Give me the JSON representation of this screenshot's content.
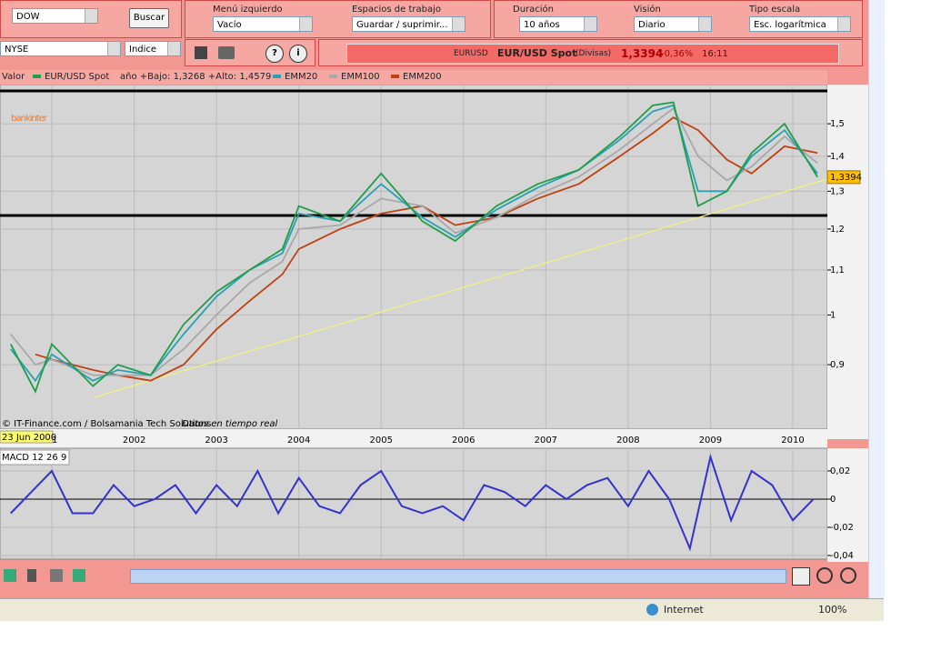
{
  "toolbar": {
    "search_value": "DOW",
    "search_button": "Buscar",
    "left_menu": {
      "label": "Menú izquierdo",
      "value": "Vacío"
    },
    "workspaces": {
      "label": "Espacios de trabajo",
      "value": "Guardar / suprimir..."
    },
    "duration": {
      "label": "Duración",
      "value": "10 años"
    },
    "view": {
      "label": "Visión",
      "value": "Diario"
    },
    "scale": {
      "label": "Tipo escala",
      "value": "Esc. logarítmica"
    },
    "market": "NYSE",
    "instrument_type": "Indice"
  },
  "ticker": {
    "symbol": "EURUSD",
    "name": "EUR/USD Spot",
    "market": "(Divisas)",
    "price": "1,3394",
    "change": "-0,36%",
    "time": "16:11"
  },
  "legend": {
    "value_label": "Valor",
    "range_text": "año +Bajo: 1,3268 +Alto: 1,4579"
  },
  "chart_data": [
    {
      "type": "line",
      "logo": "bankinter",
      "credit": "© IT-Finance.com / Bolsamania Tech Solutions",
      "credit_note": "Datos en tiempo real",
      "start_date": "23 Jun 2000",
      "log_scale": true,
      "grid": true,
      "x": [
        2000.5,
        2000.8,
        2001.0,
        2001.5,
        2001.8,
        2002.2,
        2002.6,
        2003.0,
        2003.4,
        2003.8,
        2004.0,
        2004.5,
        2005.0,
        2005.5,
        2005.9,
        2006.4,
        2006.9,
        2007.4,
        2007.9,
        2008.3,
        2008.55,
        2008.85,
        2009.2,
        2009.5,
        2009.9,
        2010.3
      ],
      "series": [
        {
          "name": "EMM200",
          "color": "#c0400f",
          "values": [
            null,
            0.92,
            0.91,
            0.89,
            0.88,
            0.87,
            0.9,
            0.97,
            1.03,
            1.09,
            1.15,
            1.2,
            1.24,
            1.26,
            1.21,
            1.23,
            1.28,
            1.32,
            1.4,
            1.47,
            1.52,
            1.48,
            1.39,
            1.35,
            1.43,
            1.41
          ]
        },
        {
          "name": "EMM100",
          "color": "#a8a8a8",
          "values": [
            0.96,
            0.9,
            0.91,
            0.88,
            0.88,
            0.88,
            0.93,
            1.0,
            1.07,
            1.12,
            1.2,
            1.21,
            1.28,
            1.26,
            1.19,
            1.23,
            1.29,
            1.34,
            1.42,
            1.5,
            1.55,
            1.4,
            1.33,
            1.37,
            1.46,
            1.38
          ]
        },
        {
          "name": "EMM20",
          "color": "#2aa0b4",
          "values": [
            0.93,
            0.87,
            0.92,
            0.87,
            0.89,
            0.88,
            0.96,
            1.04,
            1.1,
            1.14,
            1.24,
            1.22,
            1.32,
            1.23,
            1.18,
            1.25,
            1.31,
            1.36,
            1.45,
            1.54,
            1.56,
            1.3,
            1.3,
            1.4,
            1.48,
            1.35
          ]
        },
        {
          "name": "EUR/USD Spot",
          "color": "#1f9e4a",
          "values": [
            0.94,
            0.85,
            0.94,
            0.86,
            0.9,
            0.88,
            0.98,
            1.05,
            1.1,
            1.15,
            1.26,
            1.22,
            1.35,
            1.22,
            1.17,
            1.26,
            1.32,
            1.36,
            1.46,
            1.56,
            1.57,
            1.26,
            1.3,
            1.41,
            1.5,
            1.34
          ]
        }
      ],
      "hlines": [
        1.608,
        1.235
      ],
      "trendline": {
        "x": [
          2001.52,
          2010.42
        ],
        "values": [
          0.84,
          1.334
        ],
        "color": "#f2f27a"
      },
      "marker": {
        "value": 1.3394,
        "label": "1,3394"
      },
      "xlim": [
        2000.37,
        2010.42
      ],
      "xticks": [
        {
          "value": 2001,
          "label": "01"
        },
        2002,
        2003,
        2004,
        2005,
        2006,
        2007,
        2008,
        2009,
        2010
      ],
      "ylim": [
        0.785,
        1.63
      ],
      "yticks": [
        {
          "value": 1.5,
          "label": "1,5"
        },
        {
          "value": 1.4,
          "label": "1,4"
        },
        {
          "value": 1.3,
          "label": "1,3"
        },
        {
          "value": 1.2,
          "label": "1,2"
        },
        {
          "value": 1.1,
          "label": "1,1"
        },
        1,
        {
          "value": 0.9,
          "label": "0,9"
        }
      ]
    },
    {
      "type": "line",
      "title": "MACD 12 26 9",
      "grid": true,
      "x": [
        2000.5,
        2000.75,
        2001.0,
        2001.25,
        2001.5,
        2001.75,
        2002.0,
        2002.25,
        2002.5,
        2002.75,
        2003.0,
        2003.25,
        2003.5,
        2003.75,
        2004.0,
        2004.25,
        2004.5,
        2004.75,
        2005.0,
        2005.25,
        2005.5,
        2005.75,
        2006.0,
        2006.25,
        2006.5,
        2006.75,
        2007.0,
        2007.25,
        2007.5,
        2007.75,
        2008.0,
        2008.25,
        2008.5,
        2008.75,
        2009.0,
        2009.25,
        2009.5,
        2009.75,
        2010.0,
        2010.25
      ],
      "series": [
        {
          "color": "#3333cc",
          "values": [
            -0.01,
            0.005,
            0.02,
            -0.01,
            -0.01,
            0.01,
            -0.005,
            0.0,
            0.01,
            -0.01,
            0.01,
            -0.005,
            0.02,
            -0.01,
            0.015,
            -0.005,
            -0.01,
            0.01,
            0.02,
            -0.005,
            -0.01,
            -0.005,
            -0.015,
            0.01,
            0.005,
            -0.005,
            0.01,
            0.0,
            0.01,
            0.015,
            -0.005,
            0.02,
            0.0,
            -0.035,
            0.03,
            -0.015,
            0.02,
            0.01,
            -0.015,
            0.0
          ]
        }
      ],
      "xlim": [
        2000.37,
        2010.42
      ],
      "ylim": [
        -0.0426,
        0.0361
      ],
      "yticks": [
        {
          "value": 0.02,
          "label": "0,02"
        },
        0,
        {
          "value": -0.02,
          "label": "-0,02"
        },
        {
          "value": -0.04,
          "label": "-0,04"
        }
      ]
    }
  ],
  "status_bar": {
    "zone": "Internet",
    "zoom": "100%"
  }
}
